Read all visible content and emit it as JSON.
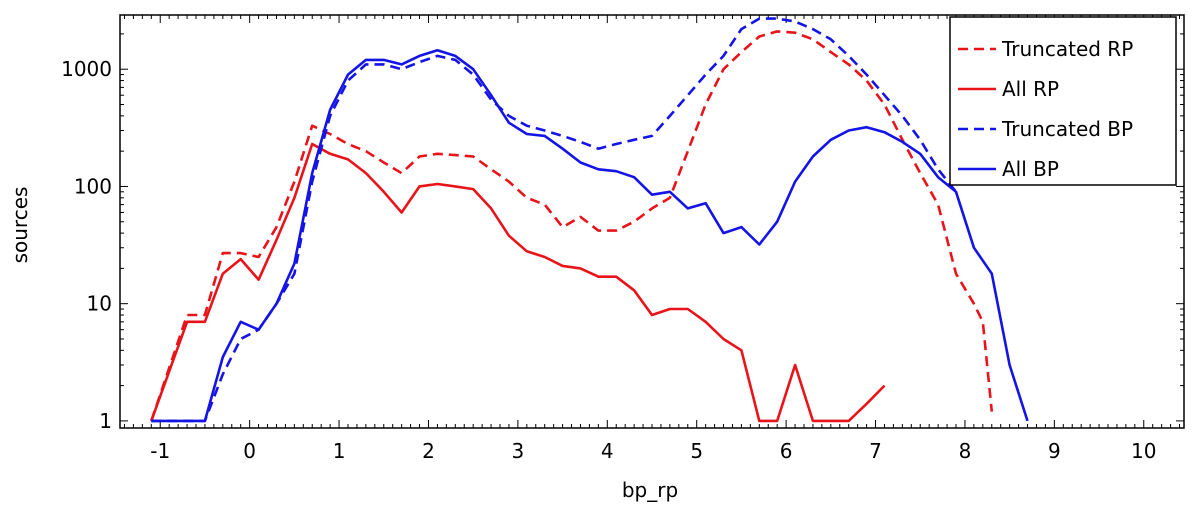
{
  "chart_data": {
    "type": "line",
    "title": "",
    "xlabel": "bp_rp",
    "ylabel": "sources",
    "xlim": [
      -1.45,
      10.45
    ],
    "ylim": [
      0.87,
      2900
    ],
    "yscale": "log",
    "grid": false,
    "legend_position": "top-right",
    "x_ticks": [
      -1,
      0,
      1,
      2,
      3,
      4,
      5,
      6,
      7,
      8,
      9,
      10
    ],
    "x_tick_labels": [
      "-1",
      "0",
      "1",
      "2",
      "3",
      "4",
      "5",
      "6",
      "7",
      "8",
      "9",
      "10"
    ],
    "y_ticks": [
      1,
      10,
      100,
      1000
    ],
    "y_tick_labels": [
      "1",
      "10",
      "100",
      "1000"
    ],
    "series": [
      {
        "name": "Truncated RP",
        "color": "#e8141a",
        "dash": "dashed",
        "points": [
          [
            -1.1,
            1
          ],
          [
            -0.7,
            8
          ],
          [
            -0.5,
            8
          ],
          [
            -0.3,
            27
          ],
          [
            -0.1,
            27
          ],
          [
            0.1,
            25
          ],
          [
            0.3,
            45
          ],
          [
            0.5,
            110
          ],
          [
            0.7,
            330
          ],
          [
            0.9,
            280
          ],
          [
            1.1,
            230
          ],
          [
            1.3,
            200
          ],
          [
            1.5,
            160
          ],
          [
            1.7,
            130
          ],
          [
            1.9,
            180
          ],
          [
            2.1,
            190
          ],
          [
            2.3,
            185
          ],
          [
            2.5,
            180
          ],
          [
            2.7,
            140
          ],
          [
            2.9,
            110
          ],
          [
            3.1,
            80
          ],
          [
            3.3,
            70
          ],
          [
            3.5,
            45
          ],
          [
            3.7,
            55
          ],
          [
            3.9,
            42
          ],
          [
            4.1,
            42
          ],
          [
            4.3,
            50
          ],
          [
            4.5,
            65
          ],
          [
            4.7,
            80
          ],
          [
            4.9,
            200
          ],
          [
            5.1,
            500
          ],
          [
            5.3,
            1000
          ],
          [
            5.5,
            1400
          ],
          [
            5.7,
            1900
          ],
          [
            5.9,
            2100
          ],
          [
            6.1,
            2050
          ],
          [
            6.3,
            1800
          ],
          [
            6.5,
            1400
          ],
          [
            6.7,
            1100
          ],
          [
            6.9,
            800
          ],
          [
            7.1,
            500
          ],
          [
            7.3,
            250
          ],
          [
            7.5,
            130
          ],
          [
            7.7,
            70
          ],
          [
            7.9,
            18
          ],
          [
            8.1,
            10
          ],
          [
            8.2,
            7
          ],
          [
            8.3,
            1.2
          ]
        ]
      },
      {
        "name": "All RP",
        "color": "#e8141a",
        "dash": "solid",
        "points": [
          [
            -1.1,
            1
          ],
          [
            -0.7,
            7
          ],
          [
            -0.5,
            7
          ],
          [
            -0.3,
            18
          ],
          [
            -0.1,
            24
          ],
          [
            0.1,
            16
          ],
          [
            0.3,
            35
          ],
          [
            0.5,
            80
          ],
          [
            0.7,
            230
          ],
          [
            0.9,
            190
          ],
          [
            1.1,
            170
          ],
          [
            1.3,
            130
          ],
          [
            1.5,
            90
          ],
          [
            1.7,
            60
          ],
          [
            1.9,
            100
          ],
          [
            2.1,
            105
          ],
          [
            2.3,
            100
          ],
          [
            2.5,
            95
          ],
          [
            2.7,
            65
          ],
          [
            2.9,
            38
          ],
          [
            3.1,
            28
          ],
          [
            3.3,
            25
          ],
          [
            3.5,
            21
          ],
          [
            3.7,
            20
          ],
          [
            3.9,
            17
          ],
          [
            4.1,
            17
          ],
          [
            4.3,
            13
          ],
          [
            4.5,
            8
          ],
          [
            4.7,
            9
          ],
          [
            4.9,
            9
          ],
          [
            5.1,
            7
          ],
          [
            5.3,
            5
          ],
          [
            5.5,
            4
          ],
          [
            5.7,
            1
          ],
          [
            5.9,
            1
          ],
          [
            6.1,
            3
          ],
          [
            6.3,
            1
          ],
          [
            6.5,
            1
          ],
          [
            6.7,
            1
          ],
          [
            6.9,
            1.4
          ],
          [
            7.1,
            2
          ]
        ]
      },
      {
        "name": "Truncated BP",
        "color": "#1414e6",
        "dash": "dashed",
        "points": [
          [
            -1.1,
            1
          ],
          [
            -0.5,
            1
          ],
          [
            -0.3,
            2.5
          ],
          [
            -0.1,
            5
          ],
          [
            0.1,
            6
          ],
          [
            0.3,
            10
          ],
          [
            0.5,
            18
          ],
          [
            0.7,
            110
          ],
          [
            0.9,
            400
          ],
          [
            1.1,
            800
          ],
          [
            1.3,
            1100
          ],
          [
            1.5,
            1100
          ],
          [
            1.7,
            1000
          ],
          [
            1.9,
            1150
          ],
          [
            2.1,
            1300
          ],
          [
            2.3,
            1200
          ],
          [
            2.5,
            900
          ],
          [
            2.7,
            550
          ],
          [
            2.9,
            400
          ],
          [
            3.1,
            330
          ],
          [
            3.3,
            300
          ],
          [
            3.5,
            270
          ],
          [
            3.7,
            240
          ],
          [
            3.9,
            210
          ],
          [
            4.1,
            230
          ],
          [
            4.3,
            250
          ],
          [
            4.5,
            270
          ],
          [
            4.7,
            400
          ],
          [
            4.9,
            600
          ],
          [
            5.1,
            900
          ],
          [
            5.3,
            1300
          ],
          [
            5.5,
            2200
          ],
          [
            5.7,
            2700
          ],
          [
            5.9,
            2700
          ],
          [
            6.1,
            2550
          ],
          [
            6.3,
            2200
          ],
          [
            6.5,
            1800
          ],
          [
            6.7,
            1300
          ],
          [
            6.9,
            900
          ],
          [
            7.1,
            600
          ],
          [
            7.3,
            400
          ],
          [
            7.5,
            250
          ],
          [
            7.7,
            140
          ],
          [
            7.9,
            90
          ]
        ]
      },
      {
        "name": "All BP",
        "color": "#1414e6",
        "dash": "solid",
        "points": [
          [
            -1.1,
            1
          ],
          [
            -0.5,
            1
          ],
          [
            -0.3,
            3.5
          ],
          [
            -0.1,
            7
          ],
          [
            0.1,
            6
          ],
          [
            0.3,
            10
          ],
          [
            0.5,
            22
          ],
          [
            0.7,
            130
          ],
          [
            0.9,
            450
          ],
          [
            1.1,
            900
          ],
          [
            1.3,
            1200
          ],
          [
            1.5,
            1200
          ],
          [
            1.7,
            1100
          ],
          [
            1.9,
            1300
          ],
          [
            2.1,
            1450
          ],
          [
            2.3,
            1300
          ],
          [
            2.5,
            1000
          ],
          [
            2.7,
            600
          ],
          [
            2.9,
            350
          ],
          [
            3.1,
            280
          ],
          [
            3.3,
            270
          ],
          [
            3.5,
            210
          ],
          [
            3.7,
            160
          ],
          [
            3.9,
            140
          ],
          [
            4.1,
            135
          ],
          [
            4.3,
            120
          ],
          [
            4.5,
            85
          ],
          [
            4.7,
            90
          ],
          [
            4.9,
            65
          ],
          [
            5.1,
            72
          ],
          [
            5.3,
            40
          ],
          [
            5.5,
            45
          ],
          [
            5.7,
            32
          ],
          [
            5.9,
            50
          ],
          [
            6.1,
            110
          ],
          [
            6.3,
            180
          ],
          [
            6.5,
            250
          ],
          [
            6.7,
            300
          ],
          [
            6.9,
            320
          ],
          [
            7.1,
            290
          ],
          [
            7.3,
            240
          ],
          [
            7.5,
            190
          ],
          [
            7.7,
            120
          ],
          [
            7.9,
            90
          ],
          [
            8.1,
            30
          ],
          [
            8.3,
            18
          ],
          [
            8.5,
            3
          ],
          [
            8.7,
            1
          ]
        ]
      }
    ]
  }
}
